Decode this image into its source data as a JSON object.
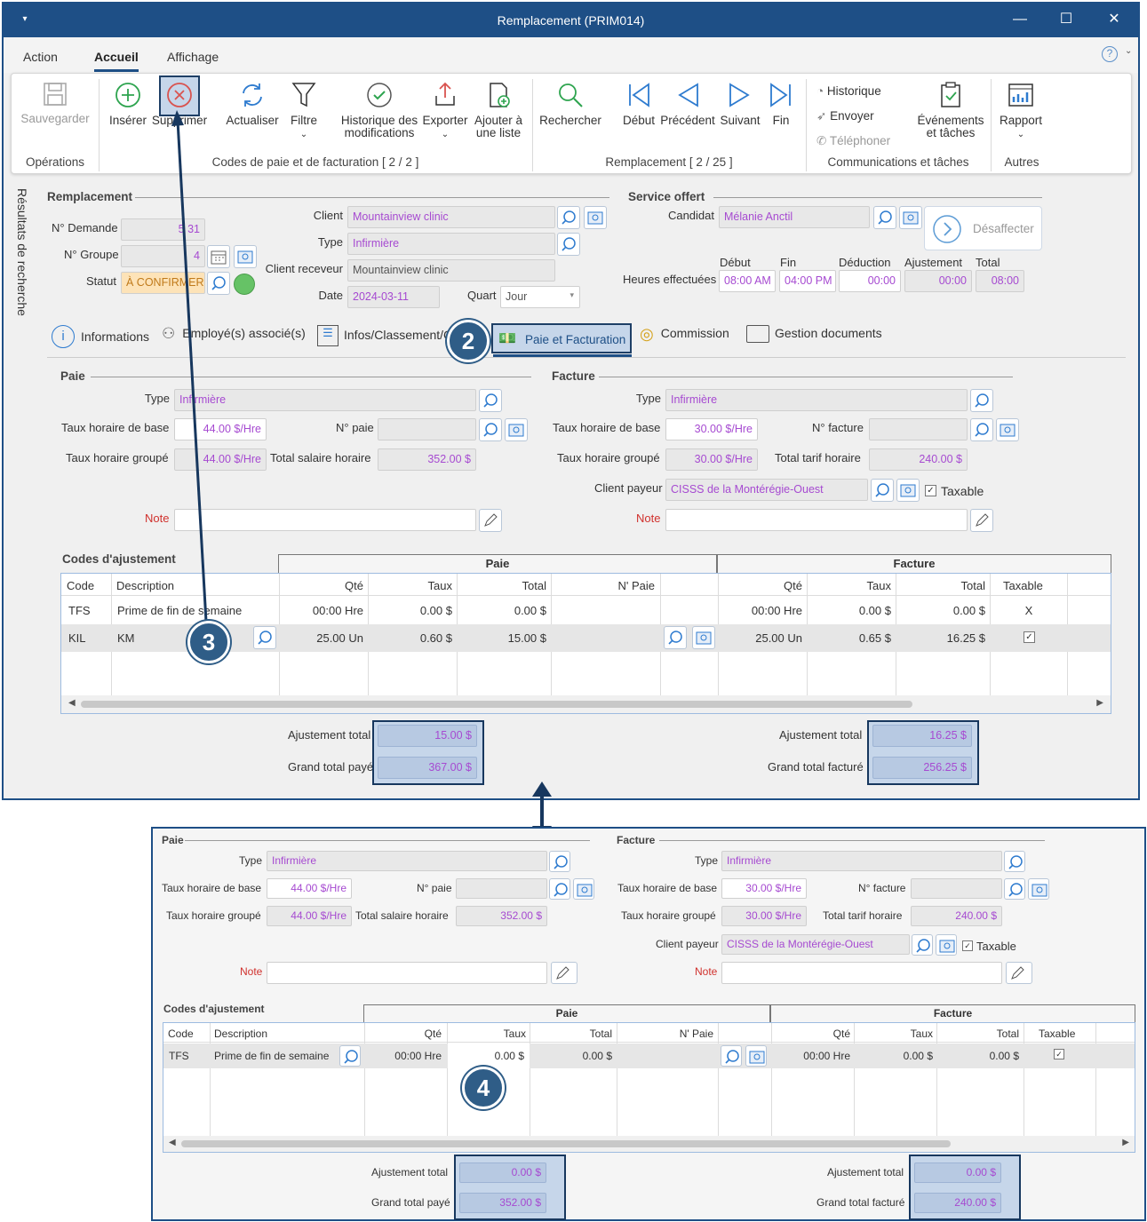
{
  "window": {
    "title": "Remplacement (PRIM014)"
  },
  "menu": [
    "Action",
    "Accueil",
    "Affichage"
  ],
  "ribbon": {
    "save": "Sauvegarder",
    "insert": "Insérer",
    "delete": "Supprimer",
    "refresh": "Actualiser",
    "filter": "Filtre",
    "history1": "Historique des",
    "history2": "modifications",
    "export": "Exporter",
    "add1": "Ajouter à",
    "add2": "une liste",
    "search": "Rechercher",
    "first": "Début",
    "prev": "Précédent",
    "next": "Suivant",
    "last": "Fin",
    "historique": "Historique",
    "envoyer": "Envoyer",
    "telephone": "Téléphoner",
    "events1": "Événements",
    "events2": "et tâches",
    "report": "Rapport",
    "g_ops": "Opérations",
    "g_codes": "Codes de paie et de facturation [ 2 / 2 ]",
    "g_remp": "Remplacement [ 2 / 25 ]",
    "g_comm": "Communications et tâches",
    "g_other": "Autres"
  },
  "sidebar": "Résultats de recherche",
  "form": {
    "sec_remp": "Remplacement",
    "sec_service": "Service offert",
    "l_demande": "N° Demande",
    "v_demande": "5 31",
    "l_groupe": "N° Groupe",
    "v_groupe": "4",
    "l_statut": "Statut",
    "v_statut": "À CONFIRMER",
    "l_client": "Client",
    "v_client": "Mountainview clinic",
    "l_type": "Type",
    "v_type": "Infirmière",
    "l_receveur": "Client receveur",
    "v_receveur": "Mountainview clinic",
    "l_date": "Date",
    "v_date": "2024-03-11",
    "l_quart": "Quart",
    "v_quart": "Jour",
    "l_candidat": "Candidat",
    "v_candidat": "Mélanie Anctil",
    "desaffecter": "Désaffecter",
    "l_heures": "Heures effectuées",
    "h_debut": "Début",
    "h_fin": "Fin",
    "h_deduction": "Déduction",
    "h_ajust": "Ajustement",
    "h_total": "Total",
    "v_debut": "08:00 AM",
    "v_fin": "04:00 PM",
    "v_deduction": "00:00",
    "v_ajust": "00:00",
    "v_total": "08:00"
  },
  "tabs": [
    "Informations",
    "Employé(s) associé(s)",
    "Infos/Classement/C",
    "Paie et Facturation",
    "Commission",
    "Gestion documents"
  ],
  "labels": {
    "paie": "Paie",
    "facture": "Facture",
    "type": "Type",
    "taux_base": "Taux horaire de base",
    "no_paie": "N° paie",
    "no_facture": "N° facture",
    "taux_groupe": "Taux horaire groupé",
    "total_salaire": "Total salaire horaire",
    "total_tarif": "Total tarif horaire",
    "client_payeur": "Client payeur",
    "taxable": "Taxable",
    "note": "Note",
    "codes": "Codes d'ajustement",
    "ajust_total": "Ajustement total",
    "grand_paye": "Grand total payé",
    "grand_facture": "Grand total facturé"
  },
  "paie": {
    "type": "Infirmière",
    "taux_base": "44.00 $/Hre",
    "taux_groupe": "44.00 $/Hre",
    "total_salaire": "352.00 $"
  },
  "facture": {
    "type": "Infirmière",
    "taux_base": "30.00 $/Hre",
    "taux_groupe": "30.00 $/Hre",
    "total_tarif": "240.00 $",
    "client_payeur": "CISSS de la Montérégie-Ouest"
  },
  "grid": {
    "group_paie": "Paie",
    "group_facture": "Facture",
    "cols": [
      "Code",
      "Description",
      "Qté",
      "Taux",
      "Total",
      "N' Paie",
      "Qté",
      "Taux",
      "Total",
      "Taxable"
    ],
    "rows": [
      [
        "TFS",
        "Prime de fin de semaine",
        "00:00 Hre",
        "0.00 $",
        "0.00 $",
        "",
        "00:00 Hre",
        "0.00 $",
        "0.00 $",
        "X"
      ],
      [
        "KIL",
        "KM",
        "25.00 Un",
        "0.60 $",
        "15.00 $",
        "",
        "25.00 Un",
        "0.65 $",
        "16.25 $",
        "✓"
      ]
    ]
  },
  "totals": {
    "ajust_paie": "15.00 $",
    "grand_paye": "367.00 $",
    "ajust_fact": "16.25 $",
    "grand_fact": "256.25 $"
  },
  "panel": {
    "rows": [
      [
        "TFS",
        "Prime de fin de semaine",
        "00:00 Hre",
        "0.00 $",
        "0.00 $",
        "",
        "00:00 Hre",
        "0.00 $",
        "0.00 $",
        "✓"
      ]
    ],
    "ajust_paie": "0.00 $",
    "grand_paye": "352.00 $",
    "ajust_fact": "0.00 $",
    "grand_fact": "240.00 $"
  },
  "badges": [
    "2",
    "3",
    "4"
  ],
  "colors": {
    "titlebar": "#1e4f86",
    "field_text": "#a64ad1",
    "badge": "#2f5d87",
    "highlight": "#c6d6ea"
  }
}
